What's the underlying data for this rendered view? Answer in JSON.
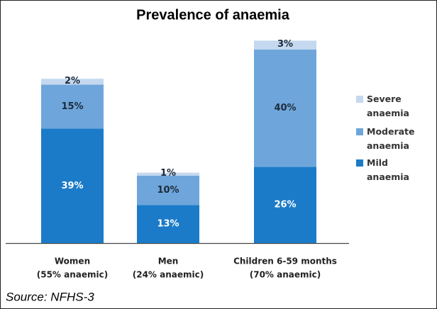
{
  "chart_data": {
    "type": "stacked_bar",
    "title": "Prevalence of anaemia",
    "categories": [
      "Women",
      "Men",
      "Children 6-59 months"
    ],
    "category_sublabels": [
      "(55% anaemic)",
      "(24% anaemic)",
      "(70% anaemic)"
    ],
    "series": [
      {
        "name": "Mild anaemia",
        "color": "#1b7bc8",
        "values": [
          39,
          13,
          26
        ],
        "value_labels": [
          "39%",
          "13%",
          "26%"
        ],
        "label_color": "#ffffff"
      },
      {
        "name": "Moderate anaemia",
        "color": "#6ea6db",
        "values": [
          15,
          10,
          40
        ],
        "value_labels": [
          "15%",
          "10%",
          "40%"
        ],
        "label_color": "#1d2b3a"
      },
      {
        "name": "Severe anaemia",
        "color": "#c4d8ef",
        "values": [
          2,
          1,
          3
        ],
        "value_labels": [
          "2%",
          "1%",
          "3%"
        ],
        "label_color": "#1d2b3a"
      }
    ],
    "source": "Source:  NFHS-3"
  }
}
